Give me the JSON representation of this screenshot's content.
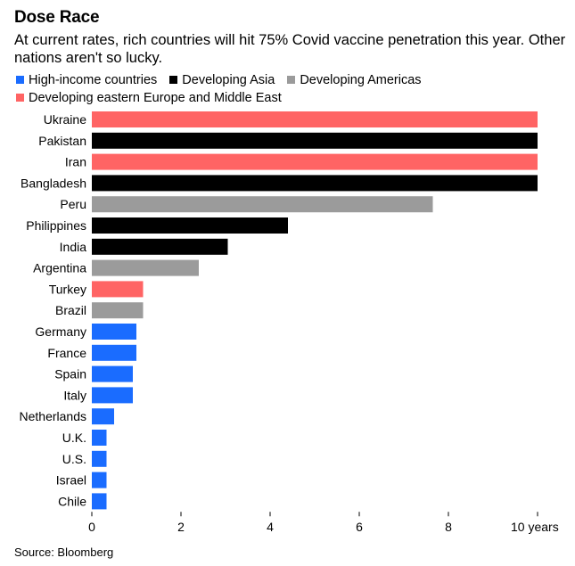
{
  "header": {
    "title": "Dose Race",
    "subtitle": "At current rates, rich countries will hit 75% Covid vaccine penetration this year. Other nations aren't so lucky."
  },
  "colors": {
    "High-income countries": "#1a6cff",
    "Developing Asia": "#000000",
    "Developing Americas": "#9b9b9b",
    "Developing eastern Europe and Middle East": "#ff6464"
  },
  "legend": [
    {
      "label": "High-income countries",
      "color": "#1a6cff"
    },
    {
      "label": "Developing Asia",
      "color": "#000000"
    },
    {
      "label": "Developing Americas",
      "color": "#9b9b9b"
    },
    {
      "label": "Developing eastern Europe and Middle East",
      "color": "#ff6464"
    }
  ],
  "chart_data": {
    "type": "bar",
    "orientation": "horizontal",
    "categories": [
      "Ukraine",
      "Pakistan",
      "Iran",
      "Bangladesh",
      "Peru",
      "Philippines",
      "India",
      "Argentina",
      "Turkey",
      "Brazil",
      "Germany",
      "France",
      "Spain",
      "Italy",
      "Netherlands",
      "U.K.",
      "U.S.",
      "Israel",
      "Chile"
    ],
    "values": [
      10,
      10,
      10,
      10,
      7.65,
      4.4,
      3.05,
      2.4,
      1.15,
      1.15,
      1.0,
      1.0,
      0.92,
      0.92,
      0.5,
      0.33,
      0.33,
      0.33,
      0.33
    ],
    "groups": [
      "Developing eastern Europe and Middle East",
      "Developing Asia",
      "Developing eastern Europe and Middle East",
      "Developing Asia",
      "Developing Americas",
      "Developing Asia",
      "Developing Asia",
      "Developing Americas",
      "Developing eastern Europe and Middle East",
      "Developing Americas",
      "High-income countries",
      "High-income countries",
      "High-income countries",
      "High-income countries",
      "High-income countries",
      "High-income countries",
      "High-income countries",
      "High-income countries",
      "High-income countries"
    ],
    "xlim": [
      0,
      10
    ],
    "xticks": [
      0,
      2,
      4,
      6,
      8,
      10
    ],
    "xtick_labels": [
      "0",
      "2",
      "4",
      "6",
      "8",
      "10 years"
    ],
    "xlabel": "",
    "ylabel": "",
    "grid": false,
    "legend_position": "top"
  },
  "footer": {
    "source": "Source: Bloomberg"
  }
}
